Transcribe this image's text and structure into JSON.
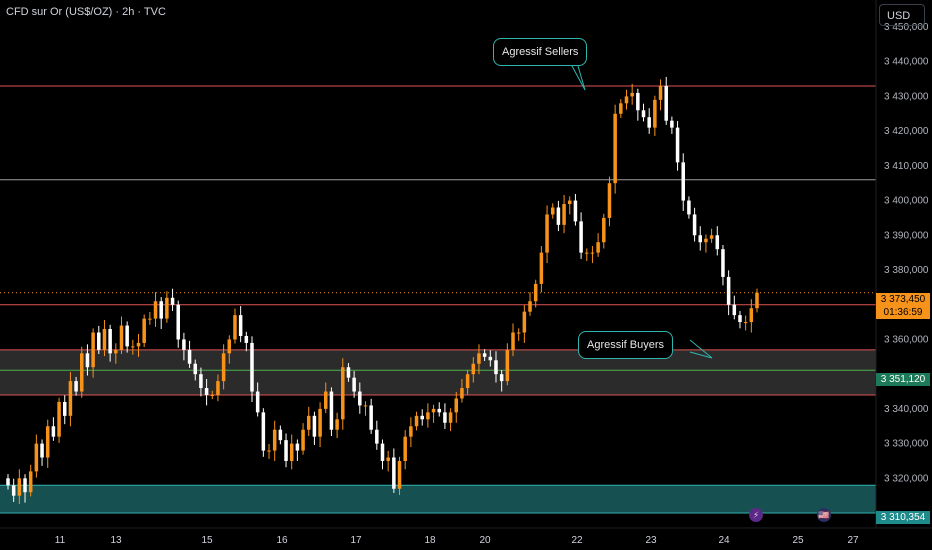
{
  "header": {
    "title": "CFD sur Or (US$/OZ) · 2h · TVC",
    "currency": "USD"
  },
  "annotations": {
    "sellers": "Agressif Sellers",
    "buyers": "Agressif Buyers"
  },
  "price_labels": {
    "current": "3 373,450",
    "countdown": "01:36:59",
    "level_green": "3 351,120",
    "level_teal": "3 310,354"
  },
  "colors": {
    "bull": "#f7931a",
    "bear": "#ffffff",
    "red_line": "#e05555",
    "teal": "#1f8a8a",
    "green_line": "#4caf50",
    "grey_line": "#9e9e9e"
  },
  "events": [
    {
      "icon": "lightning-event-icon",
      "glyph": "⚡"
    },
    {
      "icon": "us-flag-event-icon",
      "glyph": "🇺🇸"
    }
  ],
  "chart_data": {
    "type": "candlestick",
    "ylim": [
      3308,
      3452
    ],
    "ytick_values": [
      3320,
      3330,
      3340,
      3360,
      3380,
      3390,
      3400,
      3410,
      3420,
      3430,
      3440,
      3450
    ],
    "ytick_labels": [
      "3 320,000",
      "3 330,000",
      "3 340,000",
      "3 360,000",
      "3 380,000",
      "3 390,000",
      "3 400,000",
      "3 410,000",
      "3 420,000",
      "3 430,000",
      "3 440,000",
      "3 450,000"
    ],
    "xtick_labels": [
      "11",
      "13",
      "15",
      "16",
      "17",
      "18",
      "20",
      "22",
      "23",
      "24",
      "25",
      "27"
    ],
    "horizontal_levels": [
      {
        "price": 3433,
        "color": "#e05555",
        "style": "solid"
      },
      {
        "price": 3406,
        "color": "#9e9e9e",
        "style": "solid"
      },
      {
        "price": 3370,
        "color": "#e05555",
        "style": "solid"
      },
      {
        "price": 3351.12,
        "color": "#4caf50",
        "style": "solid"
      },
      {
        "price": 3373.45,
        "color": "#f7931a",
        "style": "dotted"
      }
    ],
    "zones": [
      {
        "from": 3344,
        "to": 3357,
        "color": "#3a3a3a",
        "border": "#e05555"
      },
      {
        "from": 3310,
        "to": 3318,
        "color": "#1f6b6b",
        "border": "#2fb5b0"
      }
    ],
    "closes": [
      3318,
      3315,
      3320,
      3316,
      3322,
      3330,
      3326,
      3335,
      3332,
      3342,
      3338,
      3348,
      3345,
      3356,
      3352,
      3362,
      3357,
      3363,
      3356,
      3357,
      3364,
      3358,
      3358,
      3359,
      3366,
      3366,
      3371,
      3366,
      3372,
      3370,
      3360,
      3357,
      3353,
      3350,
      3346,
      3344,
      3344,
      3348,
      3356,
      3360,
      3367,
      3361,
      3359,
      3345,
      3339,
      3328,
      3328,
      3334,
      3331,
      3325,
      3330,
      3328,
      3334,
      3338,
      3332,
      3340,
      3345,
      3334,
      3337,
      3352,
      3349,
      3345,
      3341,
      3341,
      3334,
      3330,
      3325,
      3326,
      3317,
      3325,
      3332,
      3335,
      3338,
      3337,
      3339,
      3340,
      3339,
      3336,
      3339,
      3343,
      3346,
      3350,
      3353,
      3356,
      3355,
      3354,
      3350,
      3348,
      3357,
      3362,
      3362,
      3368,
      3371,
      3376,
      3385,
      3396,
      3398,
      3393,
      3399,
      3400,
      3394,
      3385,
      3385,
      3385,
      3388,
      3395,
      3405,
      3425,
      3428,
      3430,
      3431,
      3426,
      3424,
      3421,
      3429,
      3433,
      3423,
      3421,
      3411,
      3400,
      3396,
      3390,
      3388,
      3389,
      3390,
      3386,
      3378,
      3370,
      3367,
      3365,
      3365,
      3369,
      3373.45
    ]
  }
}
